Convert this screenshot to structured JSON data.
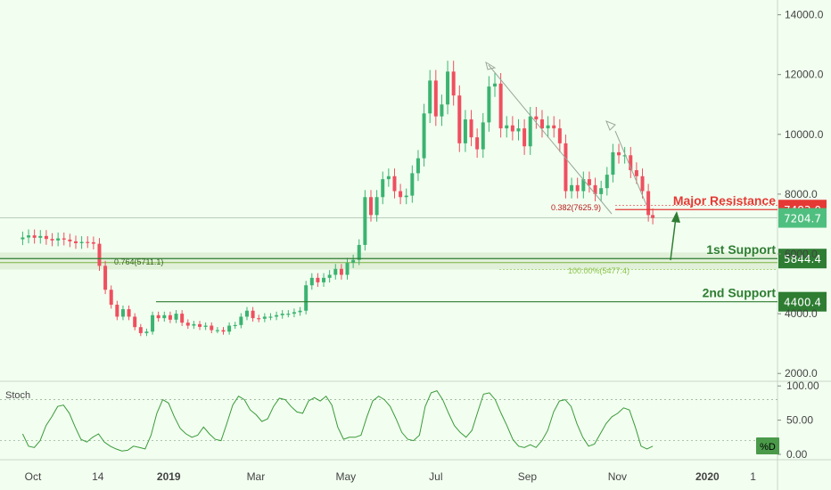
{
  "chart_data": [
    {
      "type": "candlestick",
      "pane": "price",
      "y_ticks": [
        "14000.0",
        "12000.0",
        "10000.0",
        "8000.0",
        "6000.0",
        "4000.0",
        "2000.0"
      ],
      "x_ticks": [
        "Oct",
        "14",
        "2019",
        "Mar",
        "May",
        "Jul",
        "Sep",
        "Nov",
        "2020",
        "1"
      ],
      "ylim": [
        1000,
        14600
      ],
      "last_price": "7204.7",
      "colors": {
        "up": "#3cb371",
        "down": "#ef4f5f",
        "background": "#f2fff0",
        "support": "#2e7d32",
        "resistance": "#e53935"
      },
      "levels": [
        {
          "label": "Major Resistance",
          "value": 7483.0,
          "tag": "7483.0",
          "color": "#e53935"
        },
        {
          "label": "1st Support",
          "value": 5844.4,
          "tag": "5844.4",
          "color": "#2e7d32"
        },
        {
          "label": "2nd Support",
          "value": 4400.4,
          "tag": "4400.4",
          "color": "#2e7d32"
        }
      ],
      "fib_labels": {
        "fib_0382": "0.382(7625.9)",
        "fib_0764": "0.764(5711.1)",
        "fib_100": "100.00%(5477.4)"
      },
      "series": [
        {
          "name": "",
          "points": [
            [
              "Sep 24 2018",
              6550
            ],
            [
              "Sep 28 2018",
              6620
            ],
            [
              "Oct 2 2018",
              6540
            ],
            [
              "Oct 6 2018",
              6600
            ],
            [
              "Oct 10 2018",
              6500
            ],
            [
              "Oct 14 2018",
              6450
            ],
            [
              "Oct 18 2018",
              6520
            ],
            [
              "Oct 22 2018",
              6480
            ],
            [
              "Oct 26 2018",
              6420
            ],
            [
              "Oct 30 2018",
              6360
            ],
            [
              "Nov 3 2018",
              6400
            ],
            [
              "Nov 7 2018",
              6390
            ],
            [
              "Nov 11 2018",
              6340
            ],
            [
              "Nov 15 2018",
              5600
            ],
            [
              "Nov 19 2018",
              4800
            ],
            [
              "Nov 23 2018",
              4300
            ],
            [
              "Nov 27 2018",
              3900
            ],
            [
              "Dec 1 2018",
              4150
            ],
            [
              "Dec 5 2018",
              3900
            ],
            [
              "Dec 9 2018",
              3550
            ],
            [
              "Dec 13 2018",
              3350
            ],
            [
              "Dec 17 2018",
              3400
            ],
            [
              "Dec 21 2018",
              3950
            ],
            [
              "Dec 25 2018",
              3850
            ],
            [
              "Dec 29 2018",
              3950
            ],
            [
              "Jan 2 2019",
              3800
            ],
            [
              "Jan 6 2019",
              4000
            ],
            [
              "Jan 10 2019",
              3700
            ],
            [
              "Jan 14 2019",
              3600
            ],
            [
              "Jan 18 2019",
              3650
            ],
            [
              "Jan 22 2019",
              3560
            ],
            [
              "Jan 26 2019",
              3600
            ],
            [
              "Jan 30 2019",
              3450
            ],
            [
              "Feb 3 2019",
              3450
            ],
            [
              "Feb 7 2019",
              3400
            ],
            [
              "Feb 11 2019",
              3600
            ],
            [
              "Feb 15 2019",
              3620
            ],
            [
              "Feb 19 2019",
              3900
            ],
            [
              "Feb 23 2019",
              4100
            ],
            [
              "Feb 27 2019",
              3850
            ],
            [
              "Mar 3 2019",
              3830
            ],
            [
              "Mar 7 2019",
              3900
            ],
            [
              "Mar 11 2019",
              3900
            ],
            [
              "Mar 15 2019",
              3950
            ],
            [
              "Mar 19 2019",
              4000
            ],
            [
              "Mar 23 2019",
              4000
            ],
            [
              "Mar 27 2019",
              4050
            ],
            [
              "Mar 31 2019",
              4100
            ],
            [
              "Apr 4 2019",
              4950
            ],
            [
              "Apr 8 2019",
              5200
            ],
            [
              "Apr 12 2019",
              5050
            ],
            [
              "Apr 16 2019",
              5200
            ],
            [
              "Apr 20 2019",
              5300
            ],
            [
              "Apr 24 2019",
              5500
            ],
            [
              "Apr 28 2019",
              5300
            ],
            [
              "May 2 2019",
              5700
            ],
            [
              "May 6 2019",
              5800
            ],
            [
              "May 10 2019",
              6300
            ],
            [
              "May 14 2019",
              7900
            ],
            [
              "May 18 2019",
              7300
            ],
            [
              "May 22 2019",
              7900
            ],
            [
              "May 26 2019",
              8500
            ],
            [
              "May 30 2019",
              8600
            ],
            [
              "Jun 3 2019",
              8100
            ],
            [
              "Jun 7 2019",
              7900
            ],
            [
              "Jun 11 2019",
              7950
            ],
            [
              "Jun 15 2019",
              8700
            ],
            [
              "Jun 19 2019",
              9200
            ],
            [
              "Jun 23 2019",
              10700
            ],
            [
              "Jun 27 2019",
              11800
            ],
            [
              "Jul 1 2019",
              10600
            ],
            [
              "Jul 5 2019",
              11000
            ],
            [
              "Jul 9 2019",
              12100
            ],
            [
              "Jul 13 2019",
              11300
            ],
            [
              "Jul 17 2019",
              9700
            ],
            [
              "Jul 21 2019",
              10500
            ],
            [
              "Jul 25 2019",
              9900
            ],
            [
              "Jul 29 2019",
              9500
            ],
            [
              "Aug 2 2019",
              10400
            ],
            [
              "Aug 6 2019",
              11600
            ],
            [
              "Aug 10 2019",
              11700
            ],
            [
              "Aug 14 2019",
              10200
            ],
            [
              "Aug 18 2019",
              10300
            ],
            [
              "Aug 22 2019",
              10100
            ],
            [
              "Aug 26 2019",
              10200
            ],
            [
              "Aug 30 2019",
              9600
            ],
            [
              "Sep 3 2019",
              10600
            ],
            [
              "Sep 7 2019",
              10500
            ],
            [
              "Sep 11 2019",
              10200
            ],
            [
              "Sep 15 2019",
              10300
            ],
            [
              "Sep 19 2019",
              10200
            ],
            [
              "Sep 23 2019",
              9700
            ],
            [
              "Sep 27 2019",
              8100
            ],
            [
              "Oct 1 2019",
              8300
            ],
            [
              "Oct 5 2019",
              8100
            ],
            [
              "Oct 9 2019",
              8500
            ],
            [
              "Oct 13 2019",
              8300
            ],
            [
              "Oct 17 2019",
              8000
            ],
            [
              "Oct 21 2019",
              8200
            ],
            [
              "Oct 25 2019",
              8650
            ],
            [
              "Oct 29 2019",
              9400
            ],
            [
              "Nov 2 2019",
              9300
            ],
            [
              "Nov 6 2019",
              9300
            ],
            [
              "Nov 10 2019",
              8800
            ],
            [
              "Nov 14 2019",
              8600
            ],
            [
              "Nov 18 2019",
              8100
            ],
            [
              "Nov 22 2019",
              7300
            ],
            [
              "Nov 25 2019",
              7204.7
            ]
          ]
        }
      ]
    },
    {
      "type": "line",
      "pane": "stochastic",
      "pane_label": "Stoch",
      "legend_badge": "%D",
      "ylim": [
        0,
        100
      ],
      "y_ticks": [
        "100.00",
        "50.00",
        "0.00"
      ],
      "series": [
        {
          "name": "",
          "color": "#3a9a3a",
          "x_start": "Sep 24 2018",
          "x_end": "Nov 25 2019",
          "values": [
            30,
            12,
            10,
            20,
            42,
            55,
            70,
            72,
            60,
            40,
            22,
            18,
            25,
            30,
            18,
            12,
            8,
            5,
            6,
            12,
            10,
            8,
            28,
            60,
            80,
            75,
            55,
            38,
            30,
            25,
            28,
            40,
            30,
            22,
            20,
            45,
            72,
            85,
            80,
            65,
            58,
            48,
            52,
            70,
            82,
            80,
            70,
            62,
            60,
            78,
            83,
            78,
            85,
            72,
            40,
            22,
            25,
            25,
            28,
            55,
            78,
            85,
            80,
            70,
            52,
            32,
            22,
            20,
            28,
            70,
            90,
            93,
            80,
            60,
            42,
            32,
            25,
            35,
            62,
            88,
            90,
            80,
            60,
            42,
            22,
            12,
            10,
            14,
            10,
            20,
            35,
            62,
            78,
            80,
            70,
            45,
            25,
            12,
            15,
            30,
            45,
            55,
            60,
            68,
            65,
            40,
            12,
            8,
            12
          ]
        }
      ]
    }
  ]
}
